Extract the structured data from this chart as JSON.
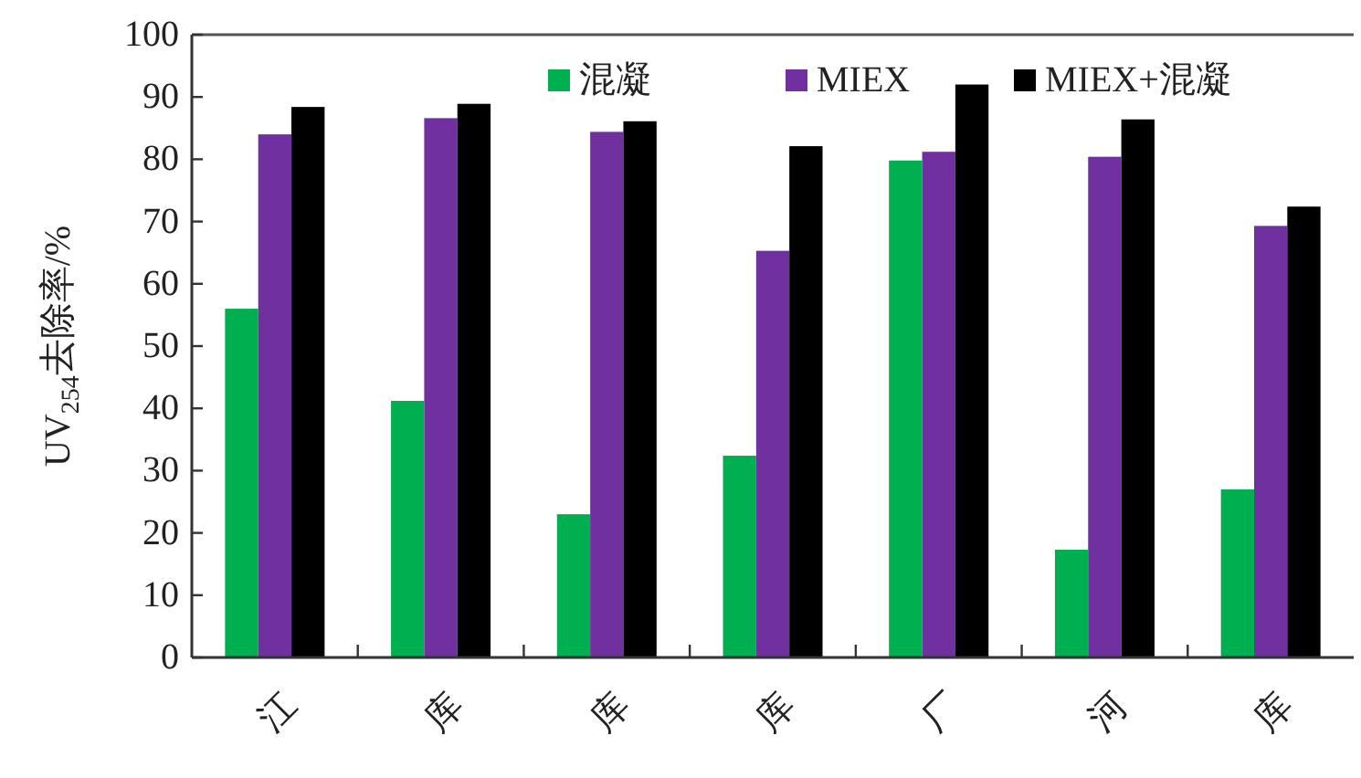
{
  "chart_data": {
    "type": "bar",
    "ylabel": "UV$_{254}$去除率/%",
    "categories": [
      "江",
      "库",
      "库",
      "库",
      "厂",
      "河",
      "库"
    ],
    "series": [
      {
        "name": "混凝",
        "color": "#00b050",
        "values": [
          56,
          41.2,
          23,
          32.4,
          79.8,
          17.3,
          27
        ]
      },
      {
        "name": "MIEX",
        "color": "#7030a0",
        "values": [
          84,
          86.6,
          84.4,
          65.3,
          81.2,
          80.4,
          69.3
        ]
      },
      {
        "name": "MIEX+混凝",
        "color": "#000000",
        "values": [
          88.4,
          88.9,
          86.1,
          82.1,
          92,
          86.4,
          72.4
        ]
      }
    ],
    "ylim": [
      0,
      100
    ],
    "yticks": [
      0,
      10,
      20,
      30,
      40,
      50,
      60,
      70,
      80,
      90,
      100
    ],
    "legend": "top",
    "grid": false
  }
}
